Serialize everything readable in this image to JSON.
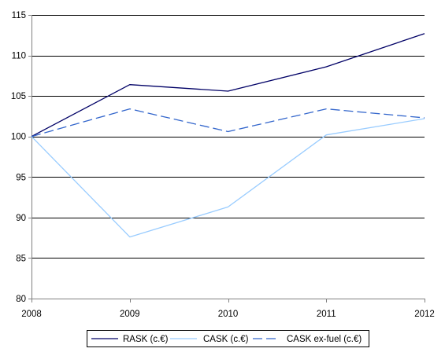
{
  "chart_data": {
    "type": "line",
    "x": [
      "2008",
      "2009",
      "2010",
      "2011",
      "2012"
    ],
    "ylim": [
      80,
      115
    ],
    "yticks": [
      80,
      85,
      90,
      95,
      100,
      105,
      110,
      115
    ],
    "grid": "horizontal",
    "legend_position": "bottom",
    "series": [
      {
        "name": "RASK (c.€)",
        "values": [
          100,
          106.4,
          105.6,
          108.6,
          112.7
        ],
        "color": "#000066",
        "dash": "solid"
      },
      {
        "name": "CASK (c.€)",
        "values": [
          100,
          87.6,
          91.3,
          100.2,
          102.2
        ],
        "color": "#99ccff",
        "dash": "solid"
      },
      {
        "name": "CASK ex-fuel (c.€)",
        "values": [
          100,
          103.4,
          100.6,
          103.4,
          102.3
        ],
        "color": "#3366cc",
        "dash": "dashed"
      }
    ]
  }
}
